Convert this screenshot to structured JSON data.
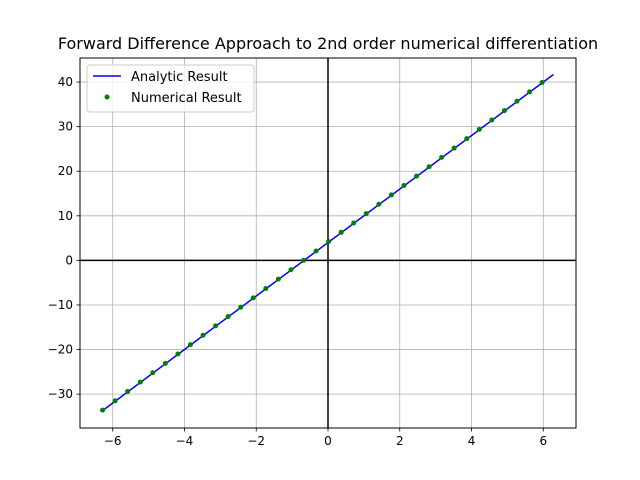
{
  "chart_data": {
    "type": "line",
    "title": "Forward Difference Approach to 2nd order numerical differentiation",
    "xlabel": "",
    "ylabel": "",
    "xlim": [
      -6.912,
      6.912
    ],
    "ylim": [
      -37.6,
      45.4
    ],
    "xticks": [
      -6,
      -4,
      -2,
      0,
      2,
      4,
      6
    ],
    "yticks": [
      -30,
      -20,
      -10,
      0,
      10,
      20,
      30,
      40
    ],
    "xtick_labels": [
      "−6",
      "−4",
      "−2",
      "0",
      "2",
      "4",
      "6"
    ],
    "ytick_labels": [
      "−30",
      "−20",
      "−10",
      "0",
      "10",
      "20",
      "30",
      "40"
    ],
    "grid": true,
    "legend_position": "top-left",
    "series": [
      {
        "name": "Analytic Result",
        "style": "line",
        "color": "#0000ff",
        "x": [
          -6.283,
          6.283
        ],
        "y": [
          -33.7,
          41.7
        ]
      },
      {
        "name": "Numerical Result",
        "style": "points",
        "color": "#008000",
        "x": [
          -6.283,
          -5.933,
          -5.583,
          -5.233,
          -4.883,
          -4.533,
          -4.183,
          -3.833,
          -3.483,
          -3.133,
          -2.783,
          -2.433,
          -2.083,
          -1.733,
          -1.383,
          -1.033,
          -0.683,
          -0.333,
          0.017,
          0.367,
          0.717,
          1.067,
          1.417,
          1.767,
          2.117,
          2.467,
          2.817,
          3.167,
          3.517,
          3.867,
          4.217,
          4.567,
          4.917,
          5.267,
          5.617,
          5.967
        ],
        "y": [
          -33.6,
          -31.5,
          -29.4,
          -27.3,
          -25.2,
          -23.1,
          -21.0,
          -18.9,
          -16.8,
          -14.7,
          -12.6,
          -10.5,
          -8.4,
          -6.3,
          -4.2,
          -2.1,
          0.0,
          2.1,
          4.2,
          6.3,
          8.4,
          10.5,
          12.6,
          14.7,
          16.8,
          18.9,
          21.0,
          23.1,
          25.2,
          27.3,
          29.4,
          31.5,
          33.6,
          35.7,
          37.8,
          39.9
        ]
      }
    ]
  }
}
